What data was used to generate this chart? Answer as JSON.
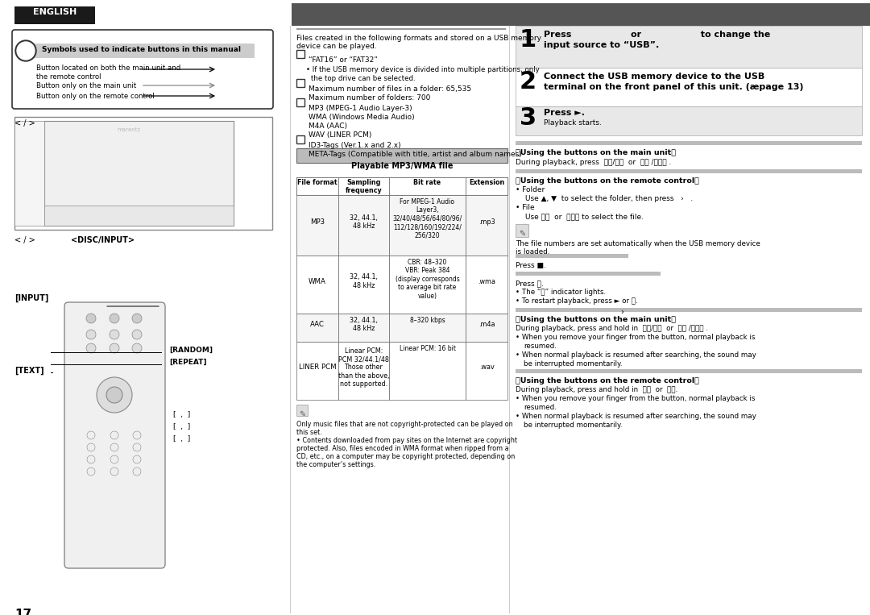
{
  "bg_color": "#ffffff",
  "page_number": "17",
  "col_divider1": 0.335,
  "col_divider2": 0.585,
  "english_tab": {
    "text": "ENGLISH",
    "bg": "#1a1a1a",
    "fg": "#ffffff"
  },
  "top_bar": {
    "color": "#555555"
  },
  "symbols_box_title": "Symbols used to indicate buttons in this manual",
  "sym_lines": [
    "Button located on both the main unit and",
    "the remote control",
    "Button only on the main unit",
    "Button only on the remote control"
  ],
  "fat_text": "“FAT16” or “FAT32”",
  "fat_bullet": "If the USB memory device is divided into multiple partitions, only",
  "fat_bullet2": "the top drive can be selected.",
  "file_counts": [
    "Maximum number of files in a folder: 65,535",
    "Maximum number of folders: 700"
  ],
  "file_formats": [
    "MP3 (MPEG-1 Audio Layer-3)",
    "WMA (Windows Media Audio)",
    "M4A (AAC)",
    "WAV (LINER PCM)"
  ],
  "tag_lines": [
    "ID3-Tags (Ver.1.x and 2.x)",
    "META-Tags (Compatible with title, artist and album names)"
  ],
  "table_title": "Playable MP3/WMA file",
  "table_headers": [
    "File format",
    "Sampling\nfrequency",
    "Bit rate",
    "Extension"
  ],
  "table_rows": [
    {
      "format": "MP3",
      "sampling": "32, 44.1,\n48 kHz",
      "bitrate": "For MPEG-1 Audio\nLayer3,\n32/40/48/56/64/80/96/\n112/128/160/192/224/\n256/320",
      "ext": ".mp3"
    },
    {
      "format": "WMA",
      "sampling": "32, 44.1,\n48 kHz",
      "bitrate": "CBR: 48–320\nVBR: Peak 384\n(display corresponds\nto average bit rate\nvalue)",
      "ext": ".wma"
    },
    {
      "format": "AAC",
      "sampling": "32, 44.1,\n48 kHz",
      "bitrate": "8–320 kbps",
      "ext": ".m4a"
    },
    {
      "format": "LINER PCM",
      "sampling": "Linear PCM:\nPCM 32/44.1/48\nThose other\nthan the above,\nnot supported.",
      "bitrate": "Linear PCM: 16 bit",
      "ext": ".wav"
    }
  ],
  "table_note": "Only music files that are not copyright-protected can be played on\nthis set.\n• Contents downloaded from pay sites on the Internet are copyright\nprotected. Also, files encoded in WMA format when ripped from a\nCD, etc., on a computer may be copyright protected, depending on\nthe computer’s settings.",
  "intro_text": "Files created in the following formats and stored on a USB memory\ndevice can be played.",
  "step1_line1": "Press                    or                    to change the",
  "step1_line2": "input source to “USB”.",
  "step2_line1": "Connect the USB memory device to the USB",
  "step2_line2": "terminal on the front panel of this unit. (æpage 13)",
  "step3_line1": "Press ►.",
  "step3_line2": "Playback starts.",
  "main_unit1_title": "Using the buttons on the main unit",
  "main_unit1_text": "During playback, press  ⏮⏮/⏮⏮  or  ⏭⏭ /⏭⏭⏭ .",
  "remote1_title": "Using the buttons on the remote control",
  "remote1_folder": "• Folder",
  "remote1_folder2": "Use ▲, ▼  to select the folder, then press   ›   .",
  "remote1_file": "• File",
  "remote1_file2": "Use ⏮⏮  or  ⏭⏭⏭ to select the file.",
  "note1": "The file numbers are set automatically when the USB memory device\nis loaded.",
  "stop_text": "Press ■.",
  "pause_text": "Press ⏸.",
  "pause_b1": "• The “⏸” indicator lights.",
  "pause_b2": "• To restart playback, press ► or ⏸.",
  "main_unit2_title": "Using the buttons on the main unit",
  "main_unit2_text": "During playback, press and hold in  ⏮⏮/⏮⏮  or  ⏭⏭ /⏭⏭⏭ .",
  "main_unit2_b1": "• When you remove your finger from the button, normal playback is",
  "main_unit2_b1b": "resumed.",
  "main_unit2_b2": "• When normal playback is resumed after searching, the sound may",
  "main_unit2_b2b": "be interrupted momentarily.",
  "remote2_title": "Using the buttons on the remote control",
  "remote2_text": "During playback, press and hold in  ⏮⏮  or  ⏭⏭.",
  "remote2_b1": "• When you remove your finger from the button, normal playback is",
  "remote2_b1b": "resumed.",
  "remote2_b2": "• When normal playback is resumed after searching, the sound may",
  "remote2_b2b": "be interrupted momentarily."
}
